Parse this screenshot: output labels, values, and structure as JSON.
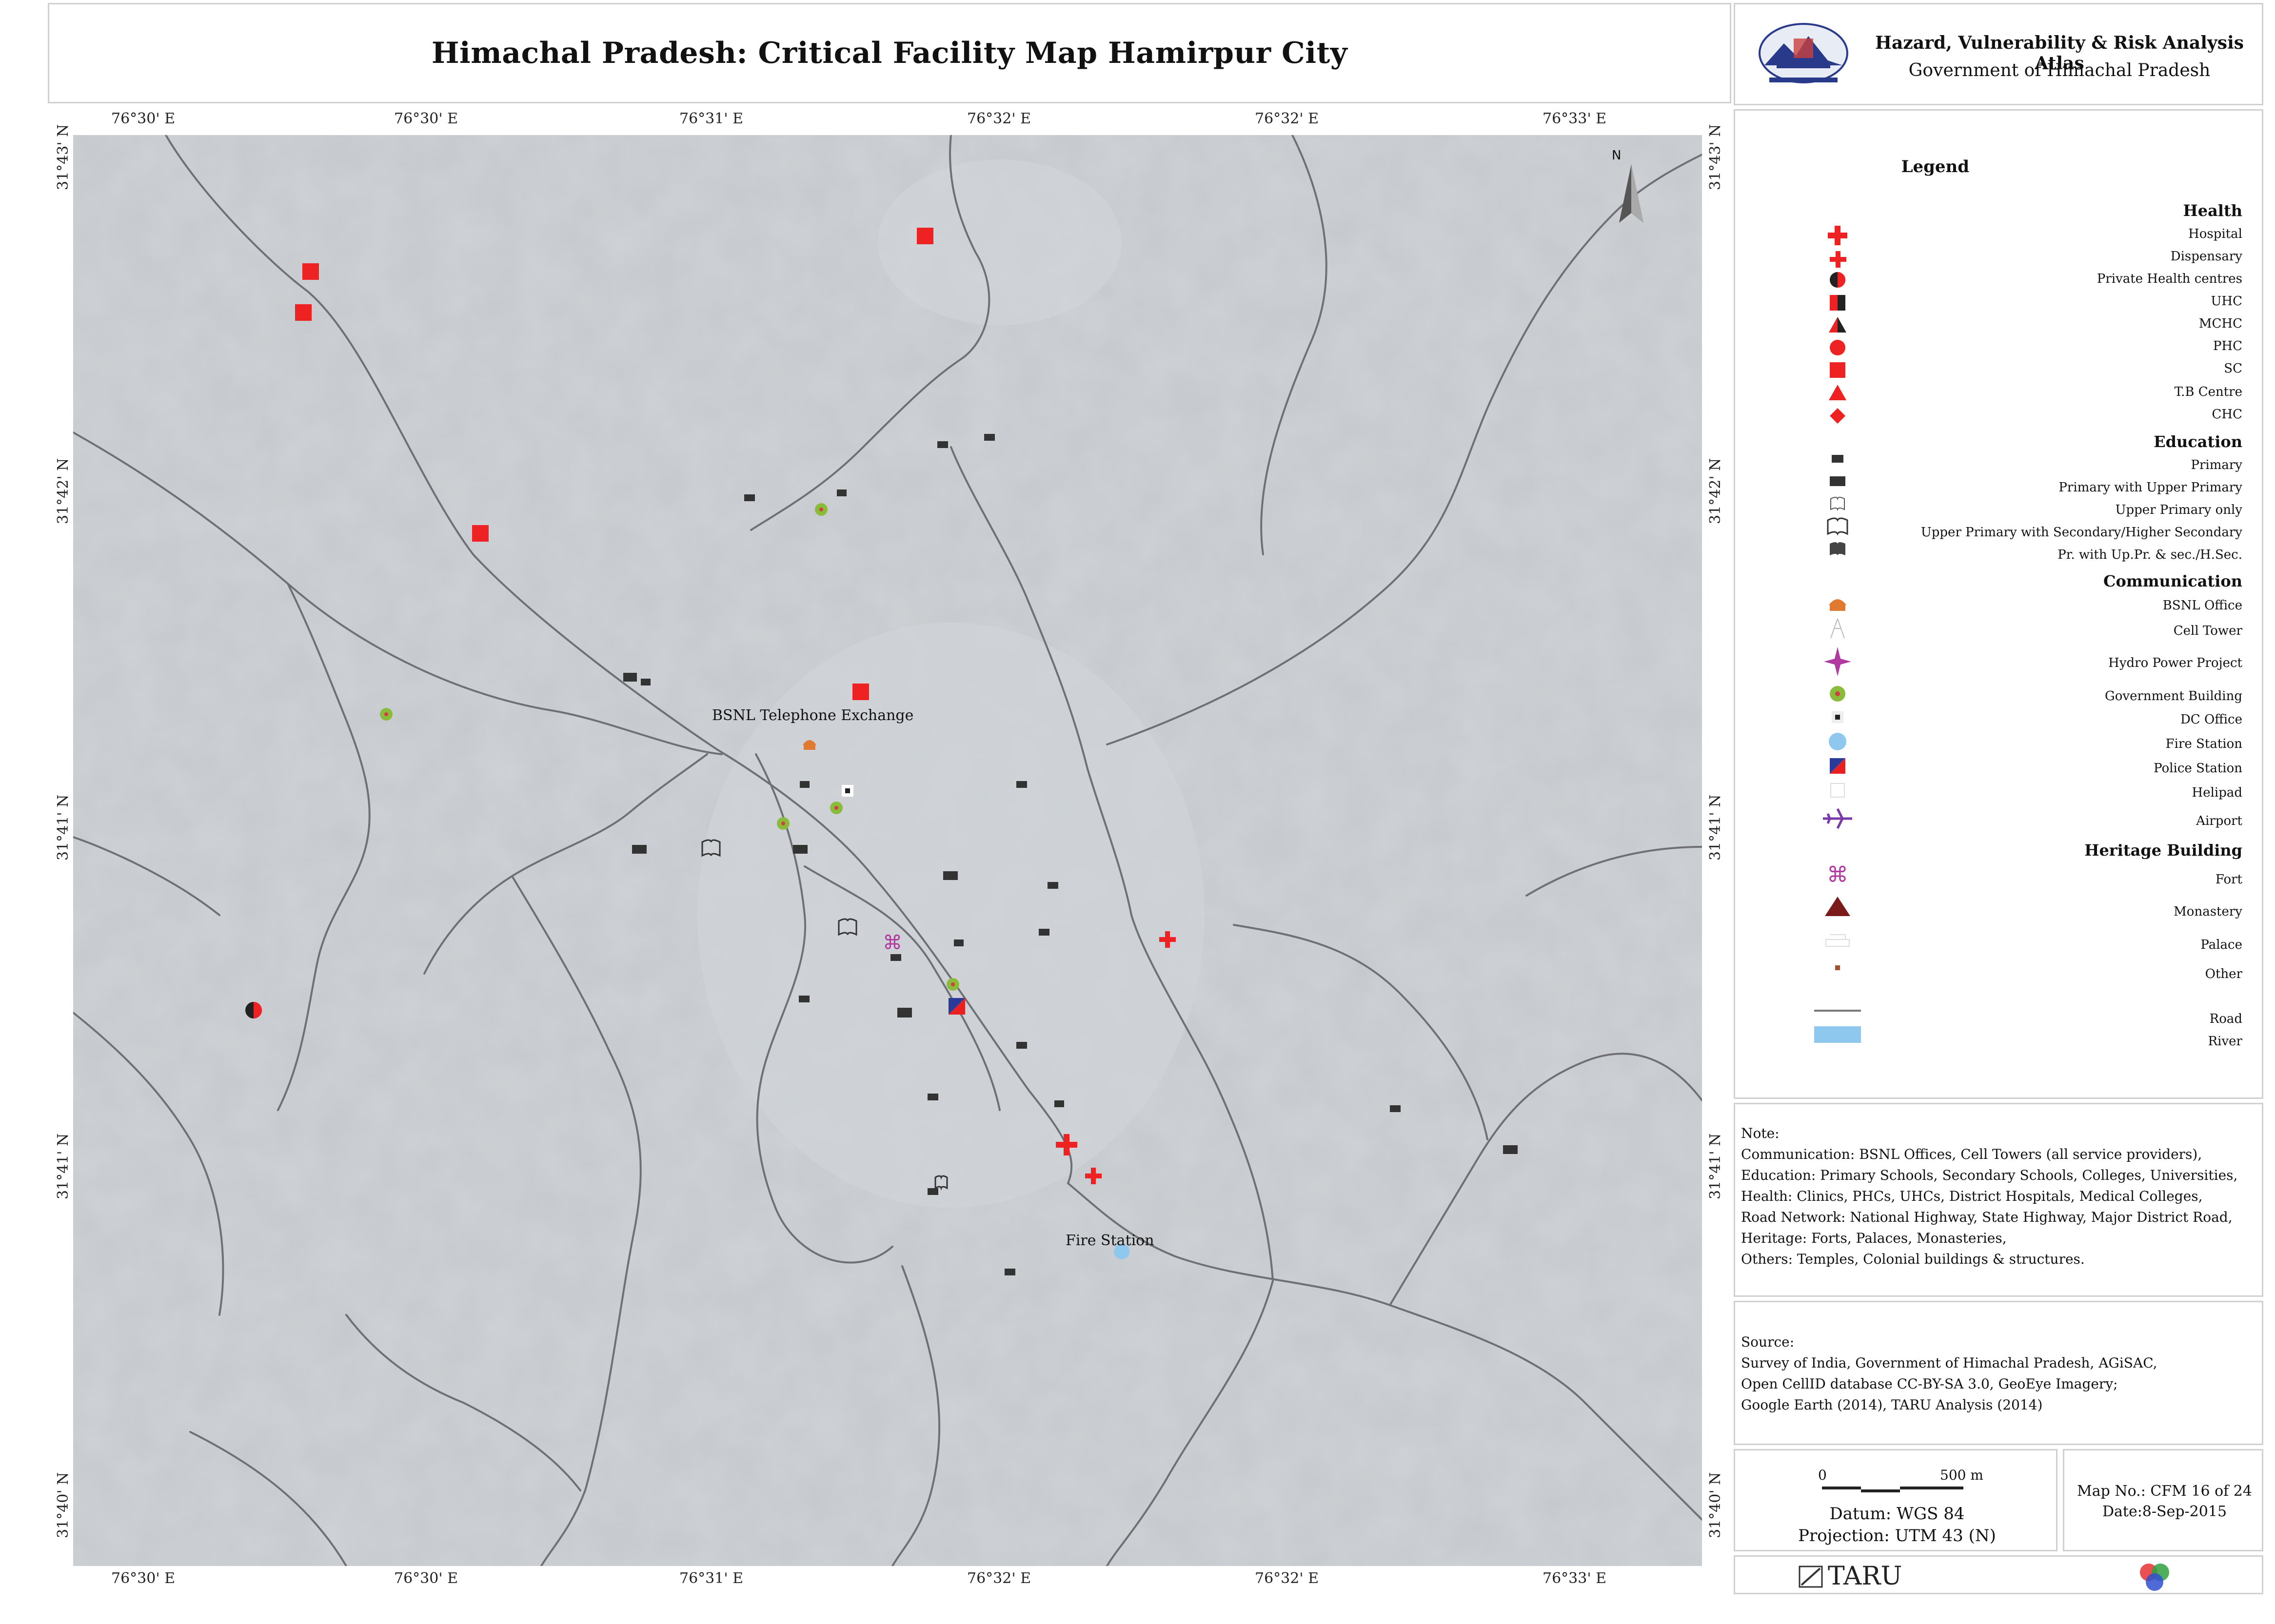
{
  "header": {
    "title": "Himachal Pradesh: Critical Facility Map Hamirpur City",
    "atlas_title": "Hazard, Vulnerability & Risk Analysis Atlas",
    "atlas_subtitle": "Government of Himachal Pradesh"
  },
  "map": {
    "lon_labels": [
      "76°30' E",
      "76°30' E",
      "76°31' E",
      "76°32' E",
      "76°32' E",
      "76°33' E"
    ],
    "lat_labels": [
      "31°43' N",
      "31°42' N",
      "31°41' N",
      "31°41' N",
      "31°40' N"
    ],
    "north_label": "N",
    "place_labels": {
      "bsnl": "BSNL Telephone Exchange",
      "fire": "Fire Station"
    },
    "colors": {
      "road": "#6e7074",
      "sc": "#ee2222",
      "hospital": "#ee2222",
      "school": "#333333",
      "gov": "#8bbb3a",
      "fire_station": "#8fc8ee",
      "police_red": "#e82020",
      "police_blue": "#2a3a9a",
      "fort": "#b03aa0",
      "bsnl": "#e07a30"
    }
  },
  "legend": {
    "title": "Legend",
    "groups": {
      "health": "Health",
      "education": "Education",
      "communication": "Communication",
      "heritage": "Heritage Building"
    },
    "items": {
      "hospital": "Hospital",
      "dispensary": "Dispensary",
      "private": "Private Health centres",
      "uhc": "UHC",
      "mchc": "MCHC",
      "phc": "PHC",
      "sc": "SC",
      "tb": "T.B Centre",
      "chc": "CHC",
      "primary": "Primary",
      "primary_upper": "Primary with Upper Primary",
      "upper_only": "Upper Primary only",
      "upper_secondary": "Upper Primary with Secondary/Higher Secondary",
      "pr_all": "Pr. with Up.Pr. & sec./H.Sec.",
      "bsnl_office": "BSNL Office",
      "cell_tower": "Cell Tower",
      "hydro": "Hydro Power Project",
      "gov_building": "Government Building",
      "dc_office": "DC Office",
      "fire_station": "Fire Station",
      "police_station": "Police Station",
      "helipad": "Helipad",
      "airport": "Airport",
      "fort": "Fort",
      "monastery": "Monastery",
      "palace": "Palace",
      "other": "Other",
      "road": "Road",
      "river": "River"
    }
  },
  "note": {
    "heading": "Note:",
    "lines": [
      "Communication: BSNL Offices, Cell Towers (all service providers),",
      "Education:  Primary Schools, Secondary Schools, Colleges, Universities,",
      "Health: Clinics, PHCs, UHCs, District Hospitals, Medical Colleges,",
      "Road Network: National Highway, State Highway, Major District Road,",
      "Heritage: Forts, Palaces, Monasteries,",
      "Others: Temples, Colonial buildings & structures."
    ]
  },
  "source": {
    "heading": "Source:",
    "lines": [
      "Survey of India, Government of Himachal Pradesh, AGiSAC,",
      "Open CellID database CC-BY-SA 3.0, GeoEye Imagery;",
      "Google Earth (2014), TARU Analysis (2014)"
    ]
  },
  "scale": {
    "start": "0",
    "end": "500 m"
  },
  "datum": "Datum: WGS 84",
  "projection": "Projection: UTM 43 (N)",
  "map_no": "Map No.: CFM 16 of 24",
  "date": "Date:8-Sep-2015",
  "footer": {
    "taru": "TARU"
  }
}
